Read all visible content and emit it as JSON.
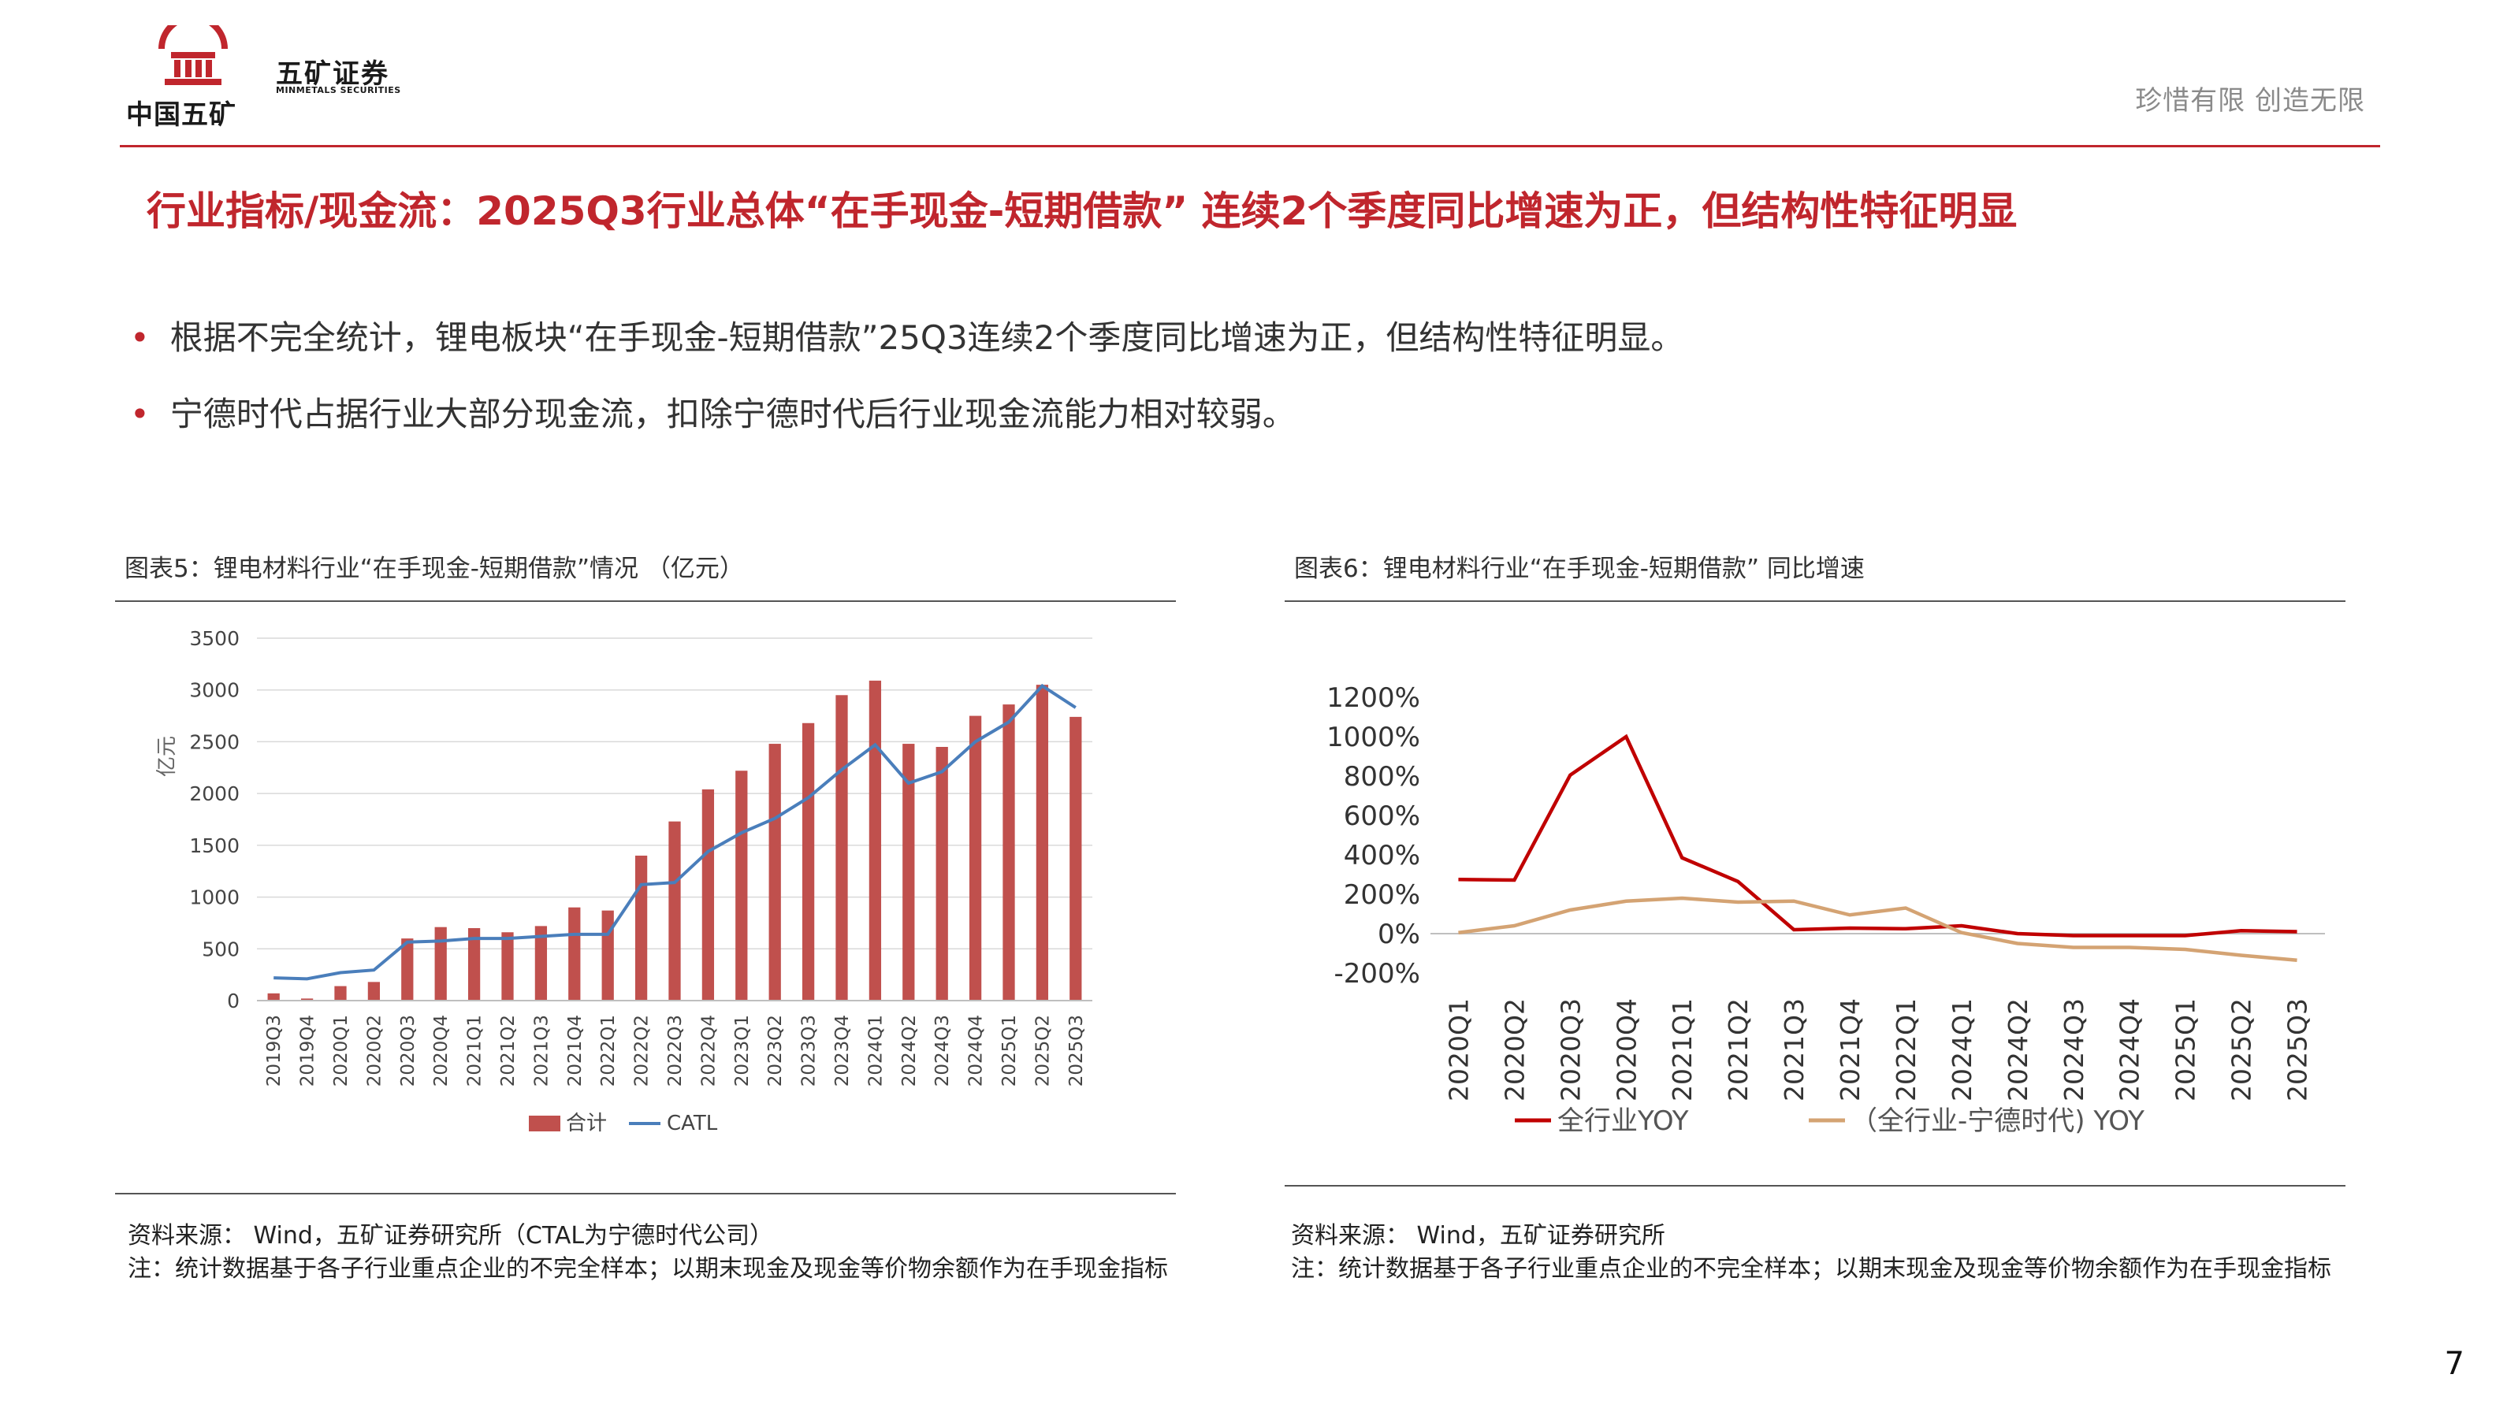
{
  "header": {
    "logo_cn": "中国五矿",
    "logo_sec": "五矿证券",
    "logo_en": "MINMETALS SECURITIES",
    "slogan": "珍惜有限 创造无限"
  },
  "title": "行业指标/现金流：2025Q3行业总体“在手现金-短期借款” 连续2个季度同比增速为正，但结构性特征明显",
  "bullets": [
    "根据不完全统计，锂电板块“在手现金-短期借款”25Q3连续2个季度同比增速为正，但结构性特征明显。",
    "宁德时代占据行业大部分现金流，扣除宁德时代后行业现金流能力相对较弱。"
  ],
  "figures": {
    "fig5": {
      "title": "图表5：锂电材料行业“在手现金-短期借款”情况 （亿元）",
      "source": "资料来源： Wind，五矿证券研究所（CTAL为宁德时代公司）",
      "note": "注：统计数据基于各子行业重点企业的不完全样本；以期末现金及现金等价物余额作为在手现金指标"
    },
    "fig6": {
      "title": "图表6：锂电材料行业“在手现金-短期借款” 同比增速",
      "source": "资料来源： Wind，五矿证券研究所",
      "note": "注：统计数据基于各子行业重点企业的不完全样本；以期末现金及现金等价物余额作为在手现金指标"
    }
  },
  "colors": {
    "accent": "#c0262d",
    "bar": "#c0504d",
    "catl": "#4a7ebb",
    "yoy_all": "#c00000",
    "yoy_ex": "#d4a373"
  },
  "page_number": "7",
  "chart_data": [
    {
      "type": "bar",
      "ylabel": "亿元",
      "ylim": [
        0,
        3500
      ],
      "yticks": [
        0,
        500,
        1000,
        1500,
        2000,
        2500,
        3000,
        3500
      ],
      "grid": true,
      "legend_position": "bottom",
      "categories": [
        "2019Q3",
        "2019Q4",
        "2020Q1",
        "2020Q2",
        "2020Q3",
        "2020Q4",
        "2021Q1",
        "2021Q2",
        "2021Q3",
        "2021Q4",
        "2022Q1",
        "2022Q2",
        "2022Q3",
        "2022Q4",
        "2023Q1",
        "2023Q2",
        "2023Q3",
        "2023Q4",
        "2024Q1",
        "2024Q2",
        "2024Q3",
        "2024Q4",
        "2025Q1",
        "2025Q2",
        "2025Q3"
      ],
      "series": [
        {
          "name": "合计",
          "kind": "bar",
          "values": [
            70,
            20,
            140,
            180,
            600,
            710,
            700,
            660,
            720,
            900,
            870,
            1400,
            1730,
            2040,
            2220,
            2480,
            2680,
            2950,
            3090,
            2480,
            2450,
            2750,
            2860,
            3050,
            2740
          ]
        },
        {
          "name": "CATL",
          "kind": "line",
          "values": [
            220,
            210,
            270,
            295,
            565,
            575,
            600,
            600,
            620,
            640,
            640,
            1120,
            1140,
            1440,
            1620,
            1760,
            1960,
            2230,
            2470,
            2100,
            2210,
            2500,
            2690,
            3040,
            2830
          ]
        }
      ]
    },
    {
      "type": "line",
      "ylim": [
        -200,
        1200
      ],
      "yticks": [
        "-200%",
        "0%",
        "200%",
        "400%",
        "600%",
        "800%",
        "1000%",
        "1200%"
      ],
      "grid": false,
      "legend_position": "bottom",
      "categories": [
        "2020Q1",
        "2020Q2",
        "2020Q3",
        "2020Q4",
        "2021Q1",
        "2021Q2",
        "2021Q3",
        "2021Q4",
        "2022Q1",
        "2024Q1",
        "2024Q2",
        "2024Q3",
        "2024Q4",
        "2025Q1",
        "2025Q2",
        "2025Q3"
      ],
      "series": [
        {
          "name": "全行业YOY",
          "values": [
            275,
            272,
            805,
            1000,
            385,
            265,
            20,
            28,
            25,
            40,
            0,
            -10,
            -10,
            -10,
            15,
            10
          ]
        },
        {
          "name": "（全行业-宁德时代) YOY",
          "values": [
            5,
            40,
            120,
            165,
            180,
            160,
            165,
            95,
            130,
            5,
            -50,
            -70,
            -70,
            -80,
            -110,
            -135
          ]
        }
      ]
    }
  ]
}
